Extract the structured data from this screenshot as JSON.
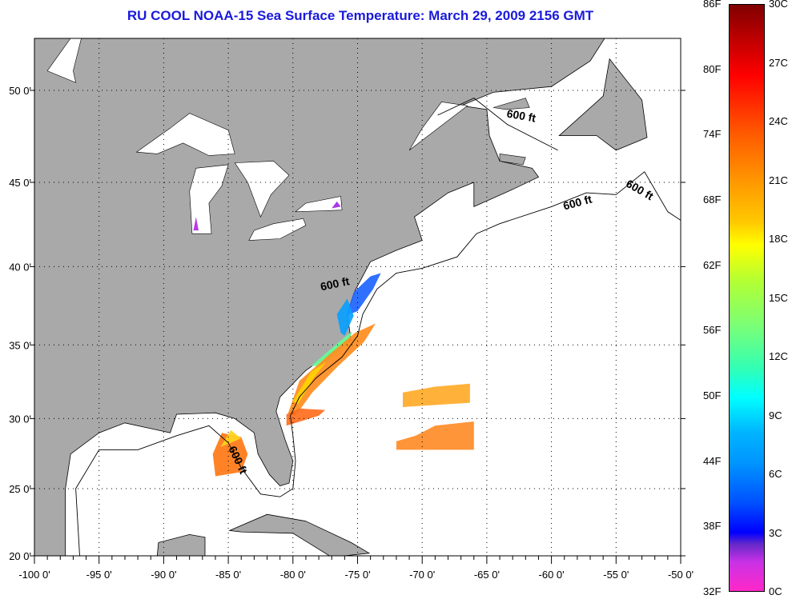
{
  "title": "RU COOL  NOAA-15  Sea Surface Temperature:  March 29, 2009 2156 GMT",
  "map": {
    "lon_ticks": [
      "-100 0'",
      "-95 0'",
      "-90 0'",
      "-85 0'",
      "-80 0'",
      "-75 0'",
      "-70 0'",
      "-65 0'",
      "-60 0'",
      "-55 0'",
      "-50 0'"
    ],
    "lon_values": [
      -100,
      -95,
      -90,
      -85,
      -80,
      -75,
      -70,
      -65,
      -60,
      -55,
      -50
    ],
    "lat_ticks": [
      "20 0'",
      "25 0'",
      "30 0'",
      "35 0'",
      "40 0'",
      "45 0'",
      "50 0'"
    ],
    "lat_values": [
      20,
      25,
      30,
      35,
      40,
      45,
      50
    ],
    "contour_label": "600 ft",
    "colors": {
      "land": "#a9a9a9",
      "ocean": "#ffffff",
      "coast": "#000000",
      "grid": "#000000"
    }
  },
  "colorbar": {
    "fahrenheit": [
      "86F",
      "80F",
      "74F",
      "68F",
      "62F",
      "56F",
      "50F",
      "44F",
      "38F",
      "32F"
    ],
    "celsius": [
      "30C",
      "27C",
      "24C",
      "21C",
      "18C",
      "15C",
      "12C",
      "9C",
      "6C",
      "3C",
      "0C"
    ]
  }
}
